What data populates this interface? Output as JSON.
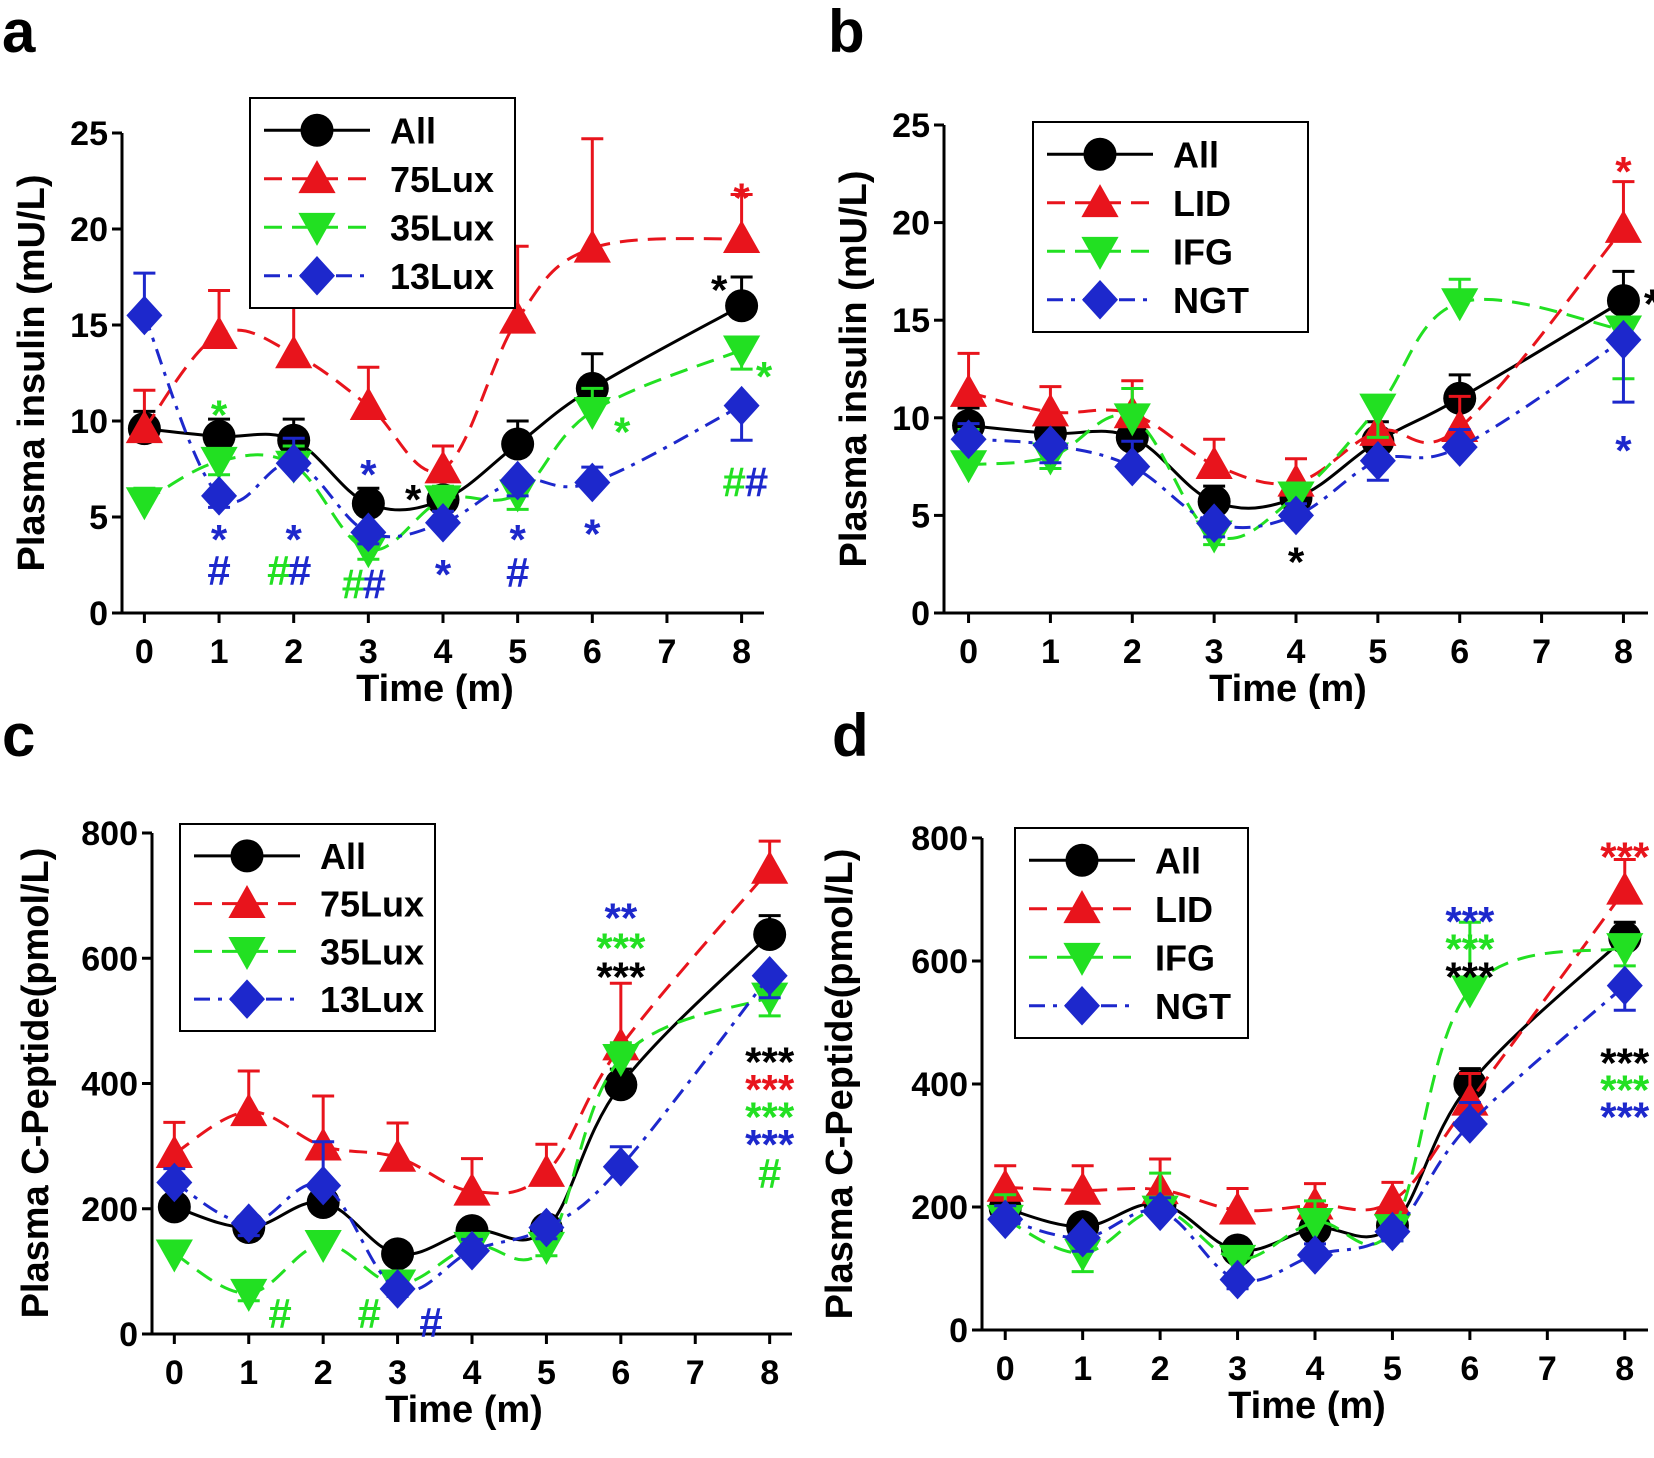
{
  "figure": {
    "colors": {
      "All": "#000000",
      "75Lux": "#e8141c",
      "LID": "#e8141c",
      "35Lux": "#22e022",
      "IFG": "#22e022",
      "13Lux": "#1d28cc",
      "NGT": "#1d28cc"
    },
    "styles": {
      "All": "solid",
      "75Lux": "dash",
      "LID": "dash",
      "35Lux": "dash",
      "IFG": "dash",
      "13Lux": "dashdot",
      "NGT": "dashdot"
    },
    "markers": {
      "All": "circle",
      "75Lux": "triangle-up",
      "LID": "triangle-up",
      "35Lux": "triangle-down",
      "IFG": "triangle-down",
      "13Lux": "diamond",
      "NGT": "diamond"
    }
  },
  "chart_data": [
    {
      "panel": "a",
      "type": "line",
      "xlabel": "Time (m)",
      "ylabel": "Plasma insulin (mU/L)",
      "ylim": [
        0,
        25
      ],
      "yticks": [
        0,
        5,
        10,
        15,
        20,
        25
      ],
      "xlim": [
        -0.3,
        8.3
      ],
      "xticks": [
        0,
        1,
        2,
        3,
        4,
        5,
        6,
        7,
        8
      ],
      "legend_position": "top-left",
      "series": [
        {
          "name": "All",
          "x": [
            0,
            1,
            2,
            3,
            4,
            5,
            6,
            8
          ],
          "values": [
            9.6,
            9.2,
            9.0,
            5.7,
            5.9,
            8.8,
            11.7,
            16.0
          ],
          "err": [
            0.9,
            0.9,
            1.1,
            0.8,
            0.6,
            1.2,
            1.8,
            1.5
          ]
        },
        {
          "name": "75Lux",
          "x": [
            0,
            1,
            2,
            3,
            4,
            5,
            6,
            8
          ],
          "values": [
            9.6,
            14.5,
            13.5,
            10.8,
            7.5,
            15.3,
            19.0,
            19.5
          ],
          "err": [
            2.0,
            2.3,
            2.8,
            2.0,
            1.2,
            3.8,
            5.7,
            2.3
          ]
        },
        {
          "name": "35Lux",
          "x": [
            0,
            1,
            2,
            3,
            4,
            5,
            6,
            8
          ],
          "values": [
            5.8,
            7.9,
            7.7,
            3.3,
            5.9,
            6.2,
            10.5,
            13.7
          ],
          "err": [
            0.7,
            0.7,
            1.0,
            0.5,
            0.7,
            0.8,
            1.2,
            1.0
          ]
        },
        {
          "name": "13Lux",
          "x": [
            0,
            1,
            2,
            3,
            4,
            5,
            6,
            8
          ],
          "values": [
            15.5,
            6.1,
            7.8,
            4.2,
            4.7,
            6.9,
            6.8,
            10.8
          ],
          "err": [
            2.2,
            0.6,
            1.3,
            0.6,
            0.6,
            0.8,
            0.8,
            1.8
          ]
        }
      ],
      "annotations": [
        {
          "text": "*",
          "series": "35Lux",
          "x": 1,
          "y": 10.5
        },
        {
          "text": "*",
          "series": "13Lux",
          "x": 1,
          "y": 4.0
        },
        {
          "text": "#",
          "series": "13Lux",
          "x": 1,
          "y": 2.4
        },
        {
          "text": "*",
          "series": "13Lux",
          "x": 2,
          "y": 4.0
        },
        {
          "text": "#",
          "series": "35Lux",
          "x": 1.8,
          "y": 2.4
        },
        {
          "text": "#",
          "series": "13Lux",
          "x": 2.08,
          "y": 2.4
        },
        {
          "text": "*",
          "series": "13Lux",
          "x": 3,
          "y": 7.4
        },
        {
          "text": "#",
          "series": "35Lux",
          "x": 2.8,
          "y": 1.7
        },
        {
          "text": "#",
          "series": "13Lux",
          "x": 3.08,
          "y": 1.7
        },
        {
          "text": "*",
          "series": "All",
          "x": 3.6,
          "y": 6.1
        },
        {
          "text": "*",
          "series": "13Lux",
          "x": 4,
          "y": 2.2
        },
        {
          "text": "*",
          "series": "13Lux",
          "x": 5,
          "y": 4.0
        },
        {
          "text": "#",
          "series": "13Lux",
          "x": 5,
          "y": 2.3
        },
        {
          "text": "*",
          "series": "35Lux",
          "x": 6.4,
          "y": 9.6
        },
        {
          "text": "*",
          "series": "13Lux",
          "x": 6,
          "y": 4.3
        },
        {
          "text": "*",
          "series": "75Lux",
          "x": 8,
          "y": 21.8
        },
        {
          "text": "*",
          "series": "All",
          "x": 7.7,
          "y": 17.0
        },
        {
          "text": "*",
          "series": "35Lux",
          "x": 8.3,
          "y": 12.5
        },
        {
          "text": "#",
          "series": "35Lux",
          "x": 7.9,
          "y": 7.0
        },
        {
          "text": "#",
          "series": "13Lux",
          "x": 8.2,
          "y": 7.0
        }
      ]
    },
    {
      "panel": "b",
      "type": "line",
      "xlabel": "Time (m)",
      "ylabel": "Plasma insulin (mU/L)",
      "ylim": [
        0,
        25
      ],
      "yticks": [
        0,
        5,
        10,
        15,
        20,
        25
      ],
      "xlim": [
        -0.3,
        8.3
      ],
      "xticks": [
        0,
        1,
        2,
        3,
        4,
        5,
        6,
        7,
        8
      ],
      "legend_position": "top-left",
      "series": [
        {
          "name": "All",
          "x": [
            0,
            1,
            2,
            3,
            4,
            5,
            6,
            8
          ],
          "values": [
            9.6,
            9.2,
            9.0,
            5.7,
            5.9,
            8.8,
            11.0,
            16.0
          ],
          "err": [
            0.9,
            0.9,
            1.1,
            0.8,
            0.6,
            1.0,
            1.2,
            1.5
          ]
        },
        {
          "name": "LID",
          "x": [
            0,
            1,
            2,
            3,
            4,
            5,
            6,
            8
          ],
          "values": [
            11.3,
            10.3,
            10.2,
            7.6,
            6.7,
            9.3,
            9.5,
            19.7
          ],
          "err": [
            2.0,
            1.3,
            1.7,
            1.3,
            1.2,
            1.6,
            1.6,
            2.4
          ]
        },
        {
          "name": "IFG",
          "x": [
            0,
            1,
            2,
            3,
            4,
            5,
            6,
            8
          ],
          "values": [
            7.6,
            8.0,
            10.0,
            4.0,
            6.0,
            10.5,
            15.9,
            14.5
          ],
          "err": [
            1.8,
            0.6,
            1.5,
            0.5,
            0.6,
            1.5,
            1.2,
            2.5
          ]
        },
        {
          "name": "NGT",
          "x": [
            0,
            1,
            2,
            3,
            4,
            5,
            6,
            8
          ],
          "values": [
            8.9,
            8.6,
            7.5,
            4.6,
            5.0,
            7.8,
            8.5,
            14.0
          ],
          "err": [
            0.8,
            0.9,
            1.3,
            0.7,
            0.6,
            1.0,
            0.9,
            3.2
          ]
        }
      ],
      "annotations": [
        {
          "text": "*",
          "series": "All",
          "x": 4,
          "y": 2.8
        },
        {
          "text": "*",
          "series": "LID",
          "x": 8,
          "y": 22.8
        },
        {
          "text": "*",
          "series": "All",
          "x": 8.35,
          "y": 16.0
        },
        {
          "text": "*",
          "series": "NGT",
          "x": 8,
          "y": 8.5
        }
      ]
    },
    {
      "panel": "c",
      "type": "line",
      "xlabel": "Time (m)",
      "ylabel": "Plasma C-Peptide(pmol/L)",
      "ylim": [
        0,
        800
      ],
      "yticks": [
        0,
        200,
        400,
        600,
        800
      ],
      "xlim": [
        -0.3,
        8.3
      ],
      "xticks": [
        0,
        1,
        2,
        3,
        4,
        5,
        6,
        7,
        8
      ],
      "legend_position": "top-left",
      "series": [
        {
          "name": "All",
          "x": [
            0,
            1,
            2,
            3,
            4,
            5,
            6,
            8
          ],
          "values": [
            203,
            170,
            210,
            128,
            165,
            168,
            398,
            638
          ],
          "err": [
            15,
            15,
            20,
            12,
            12,
            15,
            25,
            30
          ]
        },
        {
          "name": "75Lux",
          "x": [
            0,
            1,
            2,
            3,
            4,
            5,
            6,
            8
          ],
          "values": [
            288,
            355,
            300,
            282,
            228,
            258,
            460,
            742
          ],
          "err": [
            50,
            65,
            80,
            55,
            52,
            45,
            100,
            45
          ]
        },
        {
          "name": "35Lux",
          "x": [
            0,
            1,
            2,
            3,
            4,
            5,
            6,
            8
          ],
          "values": [
            128,
            65,
            143,
            80,
            140,
            140,
            440,
            538
          ],
          "err": [
            15,
            12,
            15,
            12,
            15,
            15,
            25,
            30
          ]
        },
        {
          "name": "13Lux",
          "x": [
            0,
            1,
            2,
            3,
            4,
            5,
            6,
            8
          ],
          "values": [
            242,
            177,
            237,
            72,
            133,
            170,
            267,
            572
          ],
          "err": [
            22,
            20,
            70,
            12,
            18,
            18,
            32,
            35
          ]
        }
      ],
      "annotations": [
        {
          "text": "#",
          "series": "35Lux",
          "x": 1.42,
          "y": 38
        },
        {
          "text": "#",
          "series": "35Lux",
          "x": 2.62,
          "y": 38
        },
        {
          "text": "#",
          "series": "13Lux",
          "x": 3.45,
          "y": 24
        },
        {
          "text": "**",
          "series": "13Lux",
          "x": 6,
          "y": 670
        },
        {
          "text": "***",
          "series": "35Lux",
          "x": 6,
          "y": 622
        },
        {
          "text": "***",
          "series": "All",
          "x": 6,
          "y": 576
        },
        {
          "text": "***",
          "series": "All",
          "x": 8,
          "y": 440
        },
        {
          "text": "***",
          "series": "75Lux",
          "x": 8,
          "y": 396
        },
        {
          "text": "***",
          "series": "35Lux",
          "x": 8,
          "y": 352
        },
        {
          "text": "***",
          "series": "13Lux",
          "x": 8,
          "y": 308
        },
        {
          "text": "#",
          "series": "35Lux",
          "x": 8,
          "y": 262
        }
      ]
    },
    {
      "panel": "d",
      "type": "line",
      "xlabel": "Time (m)",
      "ylabel": "Plasma C-Peptide(pmol/L)",
      "ylim": [
        0,
        800
      ],
      "yticks": [
        0,
        200,
        400,
        600,
        800
      ],
      "xlim": [
        -0.3,
        8.3
      ],
      "xticks": [
        0,
        1,
        2,
        3,
        4,
        5,
        6,
        7,
        8
      ],
      "legend_position": "top-left",
      "series": [
        {
          "name": "All",
          "x": [
            0,
            1,
            2,
            3,
            4,
            5,
            6,
            8
          ],
          "values": [
            198,
            168,
            205,
            130,
            165,
            170,
            400,
            638
          ],
          "err": [
            15,
            15,
            20,
            12,
            12,
            15,
            25,
            25
          ]
        },
        {
          "name": "LID",
          "x": [
            0,
            1,
            2,
            3,
            4,
            5,
            6,
            8
          ],
          "values": [
            232,
            227,
            228,
            195,
            203,
            210,
            372,
            715
          ],
          "err": [
            35,
            40,
            50,
            35,
            35,
            30,
            45,
            50
          ]
        },
        {
          "name": "IFG",
          "x": [
            0,
            1,
            2,
            3,
            4,
            5,
            6,
            8
          ],
          "values": [
            180,
            125,
            195,
            115,
            175,
            165,
            553,
            622
          ],
          "err": [
            40,
            30,
            60,
            25,
            35,
            20,
            110,
            30
          ]
        },
        {
          "name": "NGT",
          "x": [
            0,
            1,
            2,
            3,
            4,
            5,
            6,
            8
          ],
          "values": [
            180,
            150,
            193,
            82,
            122,
            160,
            335,
            560
          ],
          "err": [
            22,
            22,
            22,
            15,
            18,
            15,
            35,
            40
          ]
        }
      ],
      "annotations": [
        {
          "text": "***",
          "series": "LID",
          "x": 8,
          "y": 775
        },
        {
          "text": "***",
          "series": "NGT",
          "x": 6,
          "y": 670
        },
        {
          "text": "***",
          "series": "IFG",
          "x": 6,
          "y": 625
        },
        {
          "text": "***",
          "series": "All",
          "x": 6,
          "y": 580
        },
        {
          "text": "***",
          "series": "All",
          "x": 8,
          "y": 440
        },
        {
          "text": "***",
          "series": "IFG",
          "x": 8,
          "y": 396
        },
        {
          "text": "***",
          "series": "NGT",
          "x": 8,
          "y": 352
        }
      ]
    }
  ]
}
